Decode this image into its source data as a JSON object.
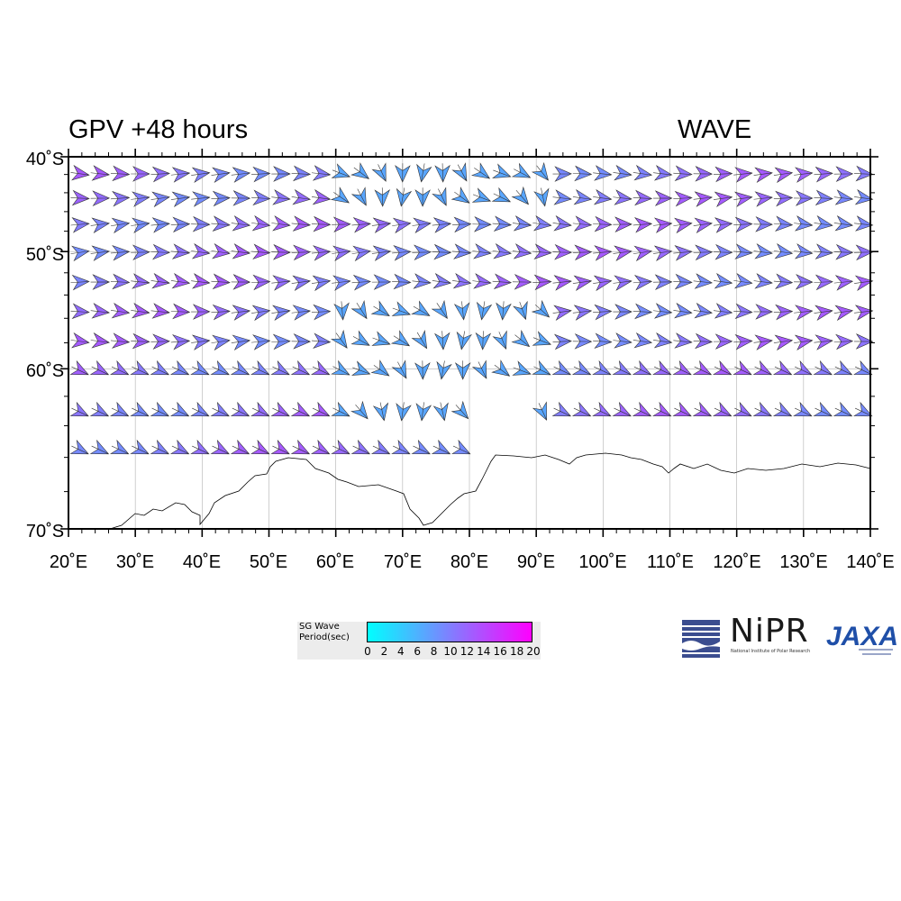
{
  "title_left": "GPV +48 hours",
  "title_right": "WAVE",
  "map": {
    "lat_labels": [
      "40˚S",
      "50˚S",
      "60˚S",
      "70˚S"
    ],
    "lon_labels": [
      "20˚E",
      "30˚E",
      "40˚E",
      "50˚E",
      "60˚E",
      "70˚E",
      "80˚E",
      "90˚E",
      "100˚E",
      "110˚E",
      "120˚E",
      "130˚E",
      "140˚E"
    ],
    "lon_min": 20,
    "lon_max": 140,
    "lat_min": -70,
    "lat_max": -40,
    "arrow_color_low": "#00ffff",
    "arrow_color_high": "#ff00ff",
    "coastline_color": "#000000",
    "grid_color": "#b0b0b0"
  },
  "legend": {
    "title_line1": "SG Wave",
    "title_line2": "Period(sec)",
    "ticks": [
      "0",
      "2",
      "4",
      "6",
      "8",
      "10",
      "12",
      "14",
      "16",
      "18",
      "20"
    ],
    "color_low": "#00ffff",
    "color_high": "#ff00ff"
  },
  "logos": {
    "nipr": "NiPR",
    "nipr_sub": "National Institute of Polar Research",
    "jaxa": "JAXA"
  }
}
